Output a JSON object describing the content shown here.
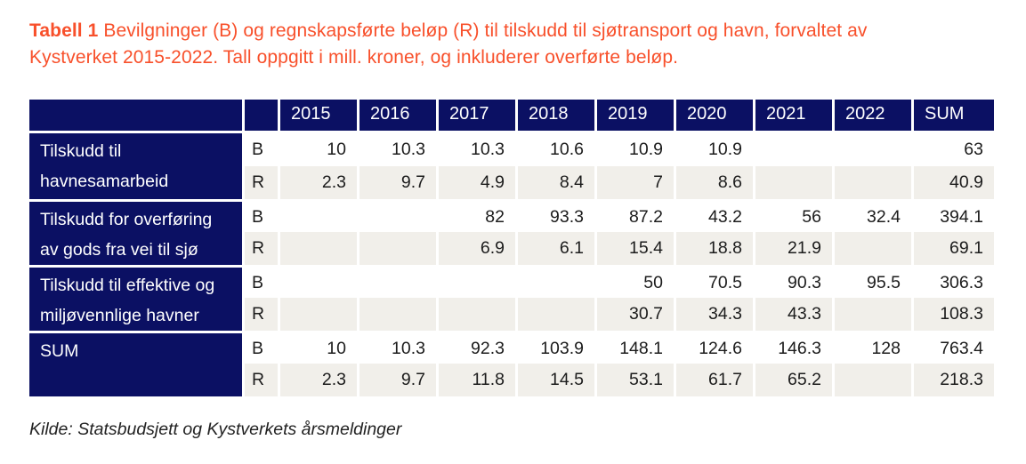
{
  "title": {
    "label": "Tabell 1",
    "text": " Bevilgninger (B) og regnskapsførte beløp (R) til tilskudd til sjøtransport og havn, forvaltet av Kystverket 2015-2022. Tall oppgitt i mill. kroner, og inkluderer overførte beløp."
  },
  "table": {
    "header": {
      "columns": [
        "2015",
        "2016",
        "2017",
        "2018",
        "2019",
        "2020",
        "2021",
        "2022",
        "SUM"
      ]
    },
    "groups": [
      {
        "label": "Tilskudd til havnesamarbeid",
        "b": {
          "type": "B",
          "values": [
            "10",
            "10.3",
            "10.3",
            "10.6",
            "10.9",
            "10.9",
            "",
            "",
            "63"
          ]
        },
        "r": {
          "type": "R",
          "values": [
            "2.3",
            "9.7",
            "4.9",
            "8.4",
            "7",
            "8.6",
            "",
            "",
            "40.9"
          ]
        }
      },
      {
        "label": "Tilskudd for overføring av gods fra vei til sjø",
        "b": {
          "type": "B",
          "values": [
            "",
            "",
            "82",
            "93.3",
            "87.2",
            "43.2",
            "56",
            "32.4",
            "394.1"
          ]
        },
        "r": {
          "type": "R",
          "values": [
            "",
            "",
            "6.9",
            "6.1",
            "15.4",
            "18.8",
            "21.9",
            "",
            "69.1"
          ]
        }
      },
      {
        "label": "Tilskudd til effektive og miljøvennlige havner",
        "b": {
          "type": "B",
          "values": [
            "",
            "",
            "",
            "",
            "50",
            "70.5",
            "90.3",
            "95.5",
            "306.3"
          ]
        },
        "r": {
          "type": "R",
          "values": [
            "",
            "",
            "",
            "",
            "30.7",
            "34.3",
            "43.3",
            "",
            "108.3"
          ]
        }
      },
      {
        "label": "SUM",
        "b": {
          "type": "B",
          "values": [
            "10",
            "10.3",
            "92.3",
            "103.9",
            "148.1",
            "124.6",
            "146.3",
            "128",
            "763.4"
          ]
        },
        "r": {
          "type": "R",
          "values": [
            "2.3",
            "9.7",
            "11.8",
            "14.5",
            "53.1",
            "61.7",
            "65.2",
            "",
            "218.3"
          ]
        }
      }
    ]
  },
  "source": "Kilde: Statsbudsjett og Kystverkets årsmeldinger",
  "colors": {
    "title_orange": "#F8502B",
    "header_navy": "#0B1063",
    "row_alt_beige": "#F1EFEA",
    "body_text": "#1C1C1C"
  }
}
